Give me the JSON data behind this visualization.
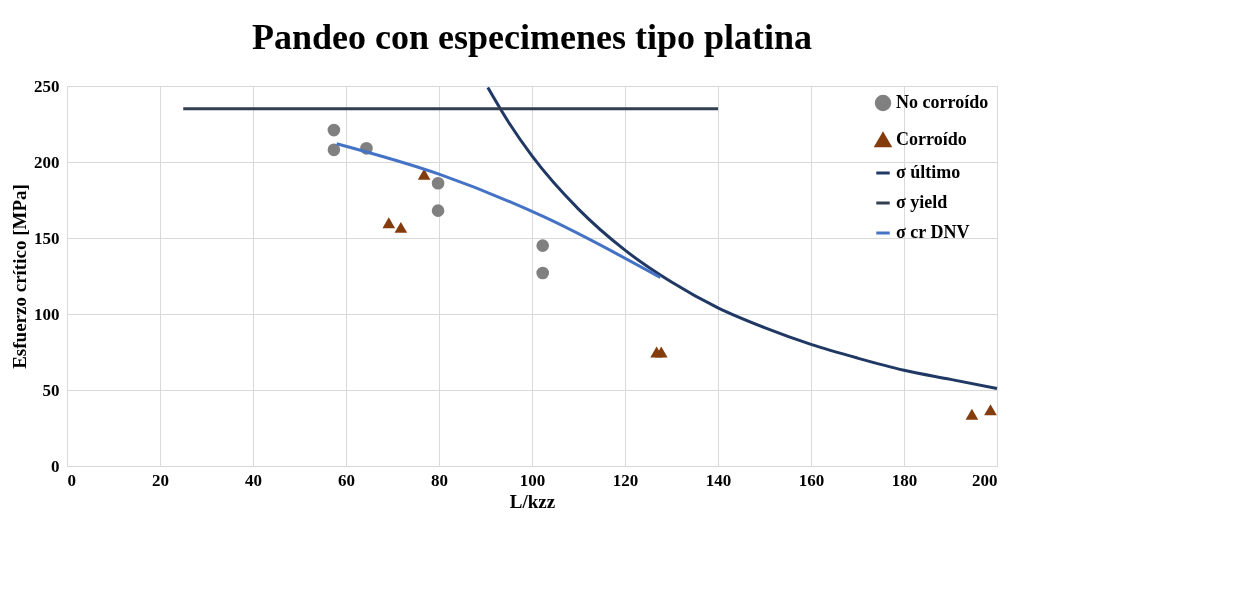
{
  "chart_data": {
    "type": "scatter",
    "title": "Pandeo con especimenes tipo platina",
    "xlabel": "L/kzz",
    "ylabel": "Esfuerzo crítico [MPa]",
    "xlim": [
      0,
      200
    ],
    "xticks": [
      0,
      20,
      40,
      60,
      80,
      100,
      120,
      140,
      160,
      180,
      200
    ],
    "ylim": [
      0,
      250
    ],
    "yticks": [
      0,
      50,
      100,
      150,
      200,
      250
    ],
    "grid": true,
    "legend": "top right",
    "series": [
      {
        "name": "No corroído",
        "marker": "circle",
        "color": "#808080",
        "x": [
          57.4,
          57.4,
          64.4,
          79.8,
          79.8,
          102.3,
          102.3
        ],
        "values": [
          221,
          208,
          209,
          186,
          168,
          145,
          127
        ]
      },
      {
        "name": "Corroído",
        "marker": "triangle",
        "color": "#843c0c",
        "x": [
          69.2,
          71.8,
          76.8,
          126.8,
          127.8,
          194.6,
          198.6
        ],
        "values": [
          160,
          157,
          192,
          75,
          75,
          34,
          37
        ]
      },
      {
        "name": "σ último",
        "type": "line",
        "marker": "none",
        "color": "#203864",
        "x": [
          90.5,
          95,
          100,
          110,
          120,
          130,
          140,
          150,
          160,
          170,
          180,
          190,
          200
        ],
        "values": [
          249,
          226,
          204,
          169,
          142,
          121,
          104,
          91,
          80,
          71,
          63,
          57,
          51
        ]
      },
      {
        "name": "σ yield",
        "type": "line",
        "marker": "none",
        "color": "#333f50",
        "x": [
          25,
          140
        ],
        "values": [
          235,
          235
        ]
      },
      {
        "name": "σ cr DNV",
        "type": "line",
        "marker": "none",
        "color": "#4472c4",
        "x": [
          58,
          80,
          102.5,
          127.6
        ],
        "values": [
          212,
          192,
          164,
          124
        ]
      }
    ]
  }
}
